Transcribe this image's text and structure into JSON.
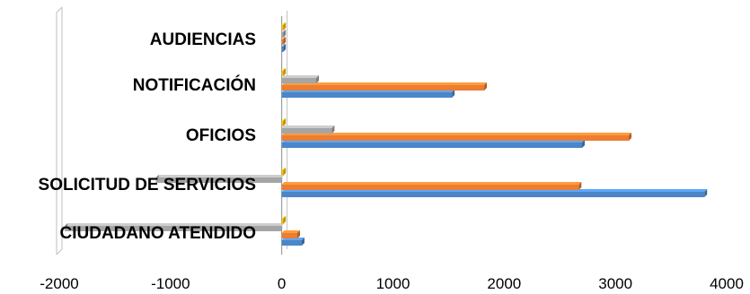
{
  "chart_data": {
    "type": "bar",
    "orientation": "horizontal",
    "style": "3d",
    "categories": [
      "CIUDADANO ATENDIDO",
      "SOLICITUD DE SERVICIOS",
      "OFICIOS",
      "NOTIFICACIÓN",
      "AUDIENCIAS"
    ],
    "series": [
      {
        "color": "#4a86c8",
        "values": [
          180,
          3800,
          2700,
          1530,
          5
        ]
      },
      {
        "color": "#ed7d31",
        "values": [
          140,
          2670,
          3120,
          1820,
          5
        ]
      },
      {
        "color": "#a5a5a5",
        "values": [
          -1950,
          -1130,
          450,
          310,
          5
        ]
      },
      {
        "color": "#ffc000",
        "values": [
          5,
          5,
          5,
          5,
          5
        ]
      }
    ],
    "xlim": [
      -2000,
      4000
    ],
    "x_ticks": [
      -2000,
      -1000,
      0,
      1000,
      2000,
      3000,
      4000
    ],
    "x_tick_labels": [
      "-2000",
      "-1000",
      "0",
      "1000",
      "2000",
      "3000",
      "4000"
    ],
    "grid": false,
    "legend": "none"
  }
}
